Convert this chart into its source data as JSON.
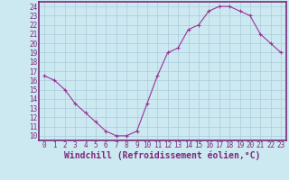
{
  "x": [
    0,
    1,
    2,
    3,
    4,
    5,
    6,
    7,
    8,
    9,
    10,
    11,
    12,
    13,
    14,
    15,
    16,
    17,
    18,
    19,
    20,
    21,
    22,
    23
  ],
  "y": [
    16.5,
    16.0,
    15.0,
    13.5,
    12.5,
    11.5,
    10.5,
    10.0,
    10.0,
    10.5,
    13.5,
    16.5,
    19.0,
    19.5,
    21.5,
    22.0,
    23.5,
    24.0,
    24.0,
    23.5,
    23.0,
    21.0,
    20.0,
    19.0
  ],
  "xlabel": "Windchill (Refroidissement éolien,°C)",
  "xticks": [
    0,
    1,
    2,
    3,
    4,
    5,
    6,
    7,
    8,
    9,
    10,
    11,
    12,
    13,
    14,
    15,
    16,
    17,
    18,
    19,
    20,
    21,
    22,
    23
  ],
  "yticks": [
    10,
    11,
    12,
    13,
    14,
    15,
    16,
    17,
    18,
    19,
    20,
    21,
    22,
    23,
    24
  ],
  "ylim": [
    9.5,
    24.5
  ],
  "xlim": [
    -0.5,
    23.5
  ],
  "line_color": "#993399",
  "marker": "+",
  "bg_color": "#cce8f0",
  "grid_color": "#aaccdd",
  "border_color": "#7a2a7a",
  "tick_label_fontsize": 5.5,
  "xlabel_fontsize": 7.0
}
